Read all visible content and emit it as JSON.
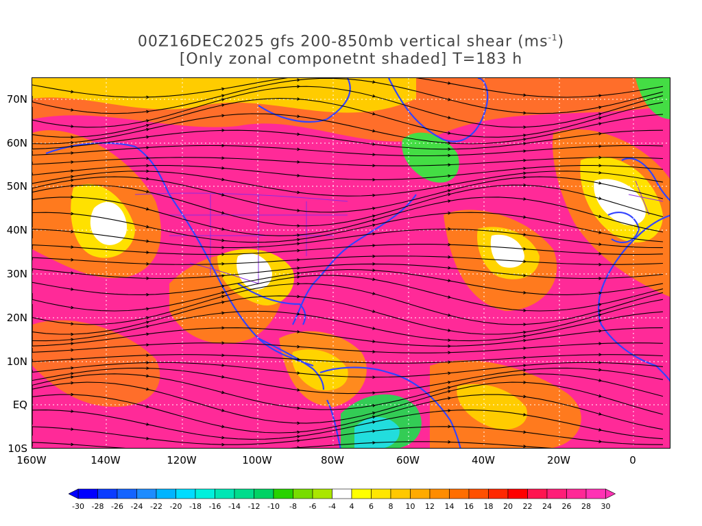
{
  "title": {
    "line1_prefix": "00Z16DEC2025 gfs 200-850mb vertical shear (ms",
    "line1_sup": "-1",
    "line1_suffix": ")",
    "line2": "[Only zonal componetnt shaded] T=183 h"
  },
  "axes": {
    "lat_labels": [
      "70N",
      "60N",
      "50N",
      "40N",
      "30N",
      "20N",
      "10N",
      "EQ",
      "10S"
    ],
    "lon_labels": [
      "160W",
      "140W",
      "120W",
      "100W",
      "80W",
      "60W",
      "40W",
      "20W",
      "0"
    ]
  },
  "colorbar": {
    "ticks": [
      "-30",
      "-28",
      "-26",
      "-24",
      "-22",
      "-20",
      "-18",
      "-16",
      "-14",
      "-12",
      "-10",
      "-8",
      "-6",
      "-4",
      "4",
      "6",
      "8",
      "10",
      "12",
      "14",
      "16",
      "18",
      "20",
      "22",
      "24",
      "26",
      "28",
      "30"
    ],
    "colors": [
      "#0000ff",
      "#0a3cff",
      "#1464ff",
      "#1e8cff",
      "#00b4ff",
      "#00dcff",
      "#00f0dc",
      "#00e6b4",
      "#00dc8c",
      "#00d264",
      "#28d200",
      "#78dc00",
      "#aae600",
      "#ffffff",
      "#ffff00",
      "#ffe600",
      "#ffc800",
      "#ffaa00",
      "#ff8c00",
      "#ff6e00",
      "#ff5000",
      "#ff2800",
      "#ff0000",
      "#ff1450",
      "#ff1e78",
      "#ff2896",
      "#ff32b4"
    ]
  },
  "colors": {
    "coastline": "#3344ff",
    "border": "#8a2be2",
    "streamline": "#000000",
    "background_shade": "#ff2a98"
  }
}
